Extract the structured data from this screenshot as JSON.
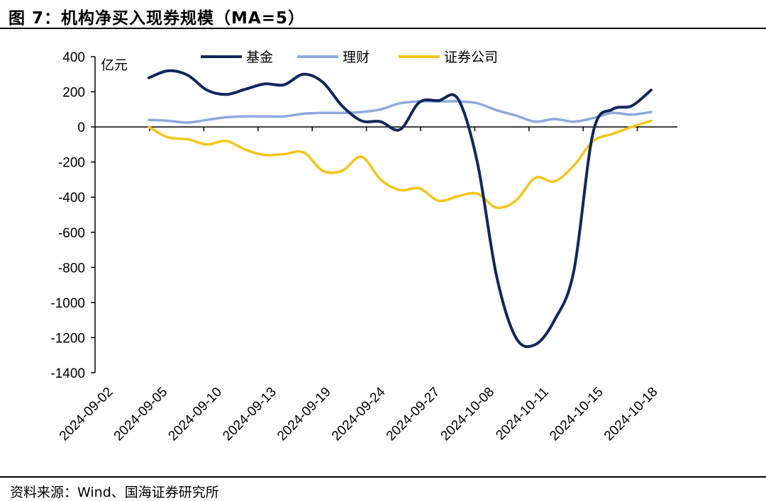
{
  "title": "图 7：机构净买入现券规模（MA=5）",
  "source": "资料来源：Wind、国海证券研究所",
  "colors": {
    "fund": "#10275e",
    "wealth": "#8ea9db",
    "broker": "#f5c518",
    "axis": "#000000"
  },
  "chart_data": {
    "type": "line",
    "title": "机构净买入现券规模（MA=5）",
    "ylabel": "亿元",
    "xlabel": "",
    "ylim": [
      -1400,
      400
    ],
    "yticks": [
      400,
      200,
      0,
      -200,
      -400,
      -600,
      -800,
      -1000,
      -1200,
      -1400
    ],
    "xlabels": [
      "2024-09-02",
      "2024-09-05",
      "2024-09-10",
      "2024-09-13",
      "2024-09-19",
      "2024-09-24",
      "2024-09-27",
      "2024-10-08",
      "2024-10-11",
      "2024-10-15",
      "2024-10-18"
    ],
    "legend_position": "top",
    "series": [
      {
        "name": "基金",
        "key": "fund",
        "values": [
          280,
          320,
          295,
          210,
          185,
          215,
          245,
          240,
          300,
          255,
          120,
          35,
          30,
          -15,
          140,
          150,
          160,
          -200,
          -850,
          -1200,
          -1240,
          -1100,
          -820,
          -30,
          100,
          120,
          210
        ]
      },
      {
        "name": "理财",
        "key": "wealth",
        "values": [
          40,
          35,
          25,
          40,
          55,
          60,
          60,
          60,
          75,
          80,
          80,
          85,
          100,
          135,
          145,
          145,
          145,
          135,
          95,
          65,
          30,
          45,
          30,
          50,
          80,
          70,
          85
        ]
      },
      {
        "name": "证券公司",
        "key": "broker",
        "values": [
          0,
          -60,
          -70,
          -100,
          -80,
          -130,
          -160,
          -155,
          -145,
          -250,
          -250,
          -170,
          -300,
          -360,
          -350,
          -420,
          -395,
          -380,
          -460,
          -420,
          -290,
          -310,
          -220,
          -80,
          -40,
          0,
          35
        ]
      }
    ]
  }
}
